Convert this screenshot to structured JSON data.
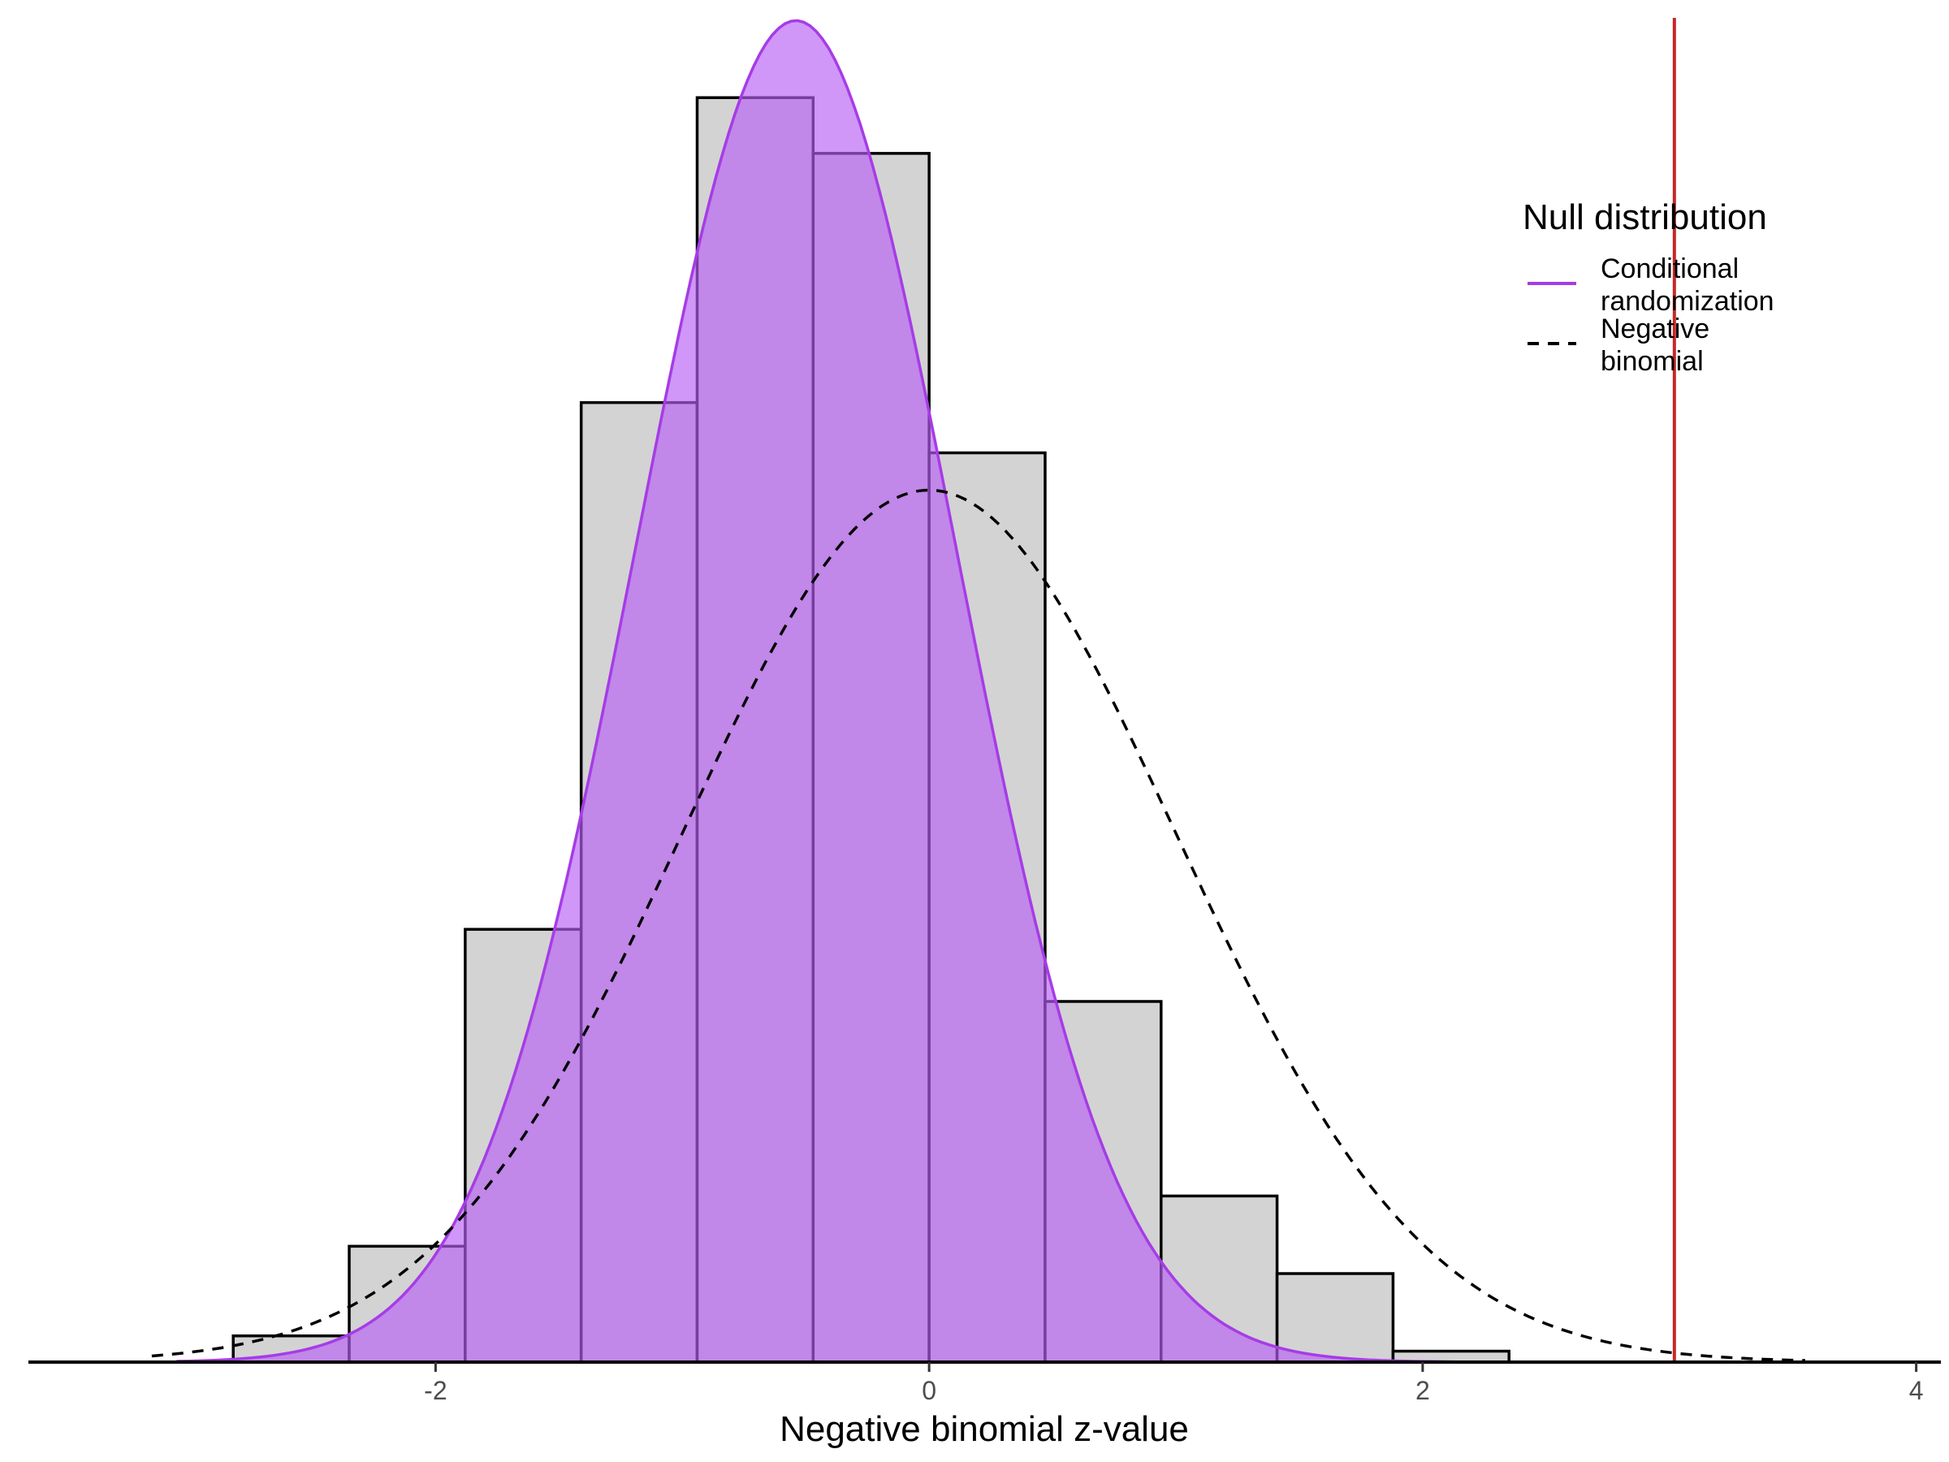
{
  "chart_data": {
    "type": "histogram",
    "title": "",
    "xlabel": "Negative binomial z-value",
    "ylabel": "",
    "xlim": [
      -3.65,
      4.1
    ],
    "x_ticks": [
      -2,
      0,
      2,
      4
    ],
    "x_tick_labels": [
      "-2",
      "0",
      "2",
      "4"
    ],
    "density_max": 0.615,
    "grid": false,
    "histogram": {
      "bin_width": 0.47,
      "bins": [
        {
          "x0": -2.82,
          "x1": -2.35,
          "density": 0.012
        },
        {
          "x0": -2.35,
          "x1": -1.88,
          "density": 0.053
        },
        {
          "x0": -1.88,
          "x1": -1.41,
          "density": 0.198
        },
        {
          "x0": -1.41,
          "x1": -0.94,
          "density": 0.439
        },
        {
          "x0": -0.94,
          "x1": -0.47,
          "density": 0.5785
        },
        {
          "x0": -0.47,
          "x1": 0.0,
          "density": 0.553
        },
        {
          "x0": 0.0,
          "x1": 0.47,
          "density": 0.416
        },
        {
          "x0": 0.47,
          "x1": 0.94,
          "density": 0.165
        },
        {
          "x0": 0.94,
          "x1": 1.41,
          "density": 0.076
        },
        {
          "x0": 1.41,
          "x1": 1.88,
          "density": 0.0405
        },
        {
          "x0": 1.88,
          "x1": 2.35,
          "density": 0.005
        }
      ]
    },
    "series": [
      {
        "name": "Conditional randomization",
        "kind": "density-filled",
        "distribution": "normal",
        "mean": -0.54,
        "sd": 0.65,
        "x_range": [
          -3.05,
          3.05
        ]
      },
      {
        "name": "Negative binomial",
        "kind": "density-dashed",
        "distribution": "normal",
        "mean": 0.0,
        "sd": 1.0,
        "x_range": [
          -3.15,
          3.55
        ]
      }
    ],
    "reference_line": {
      "x": 3.02,
      "color": "#c62828"
    },
    "legend": {
      "title": "Null distribution",
      "position": "top-right",
      "entries": [
        {
          "series": "Conditional randomization",
          "lines": [
            "Conditional",
            "randomization"
          ],
          "style": "solid",
          "color": "#a63ce6"
        },
        {
          "series": "Negative binomial",
          "lines": [
            "Negative",
            "binomial"
          ],
          "style": "dashed",
          "color": "#000000"
        }
      ]
    },
    "colors": {
      "histogram_fill": "#d3d3d3",
      "histogram_stroke": "#000000",
      "crt_fill": "#b75ef5",
      "crt_fill_opacity": 0.65,
      "crt_line": "#a63ce6",
      "nb_line": "#000000",
      "axis": "#000000"
    }
  }
}
